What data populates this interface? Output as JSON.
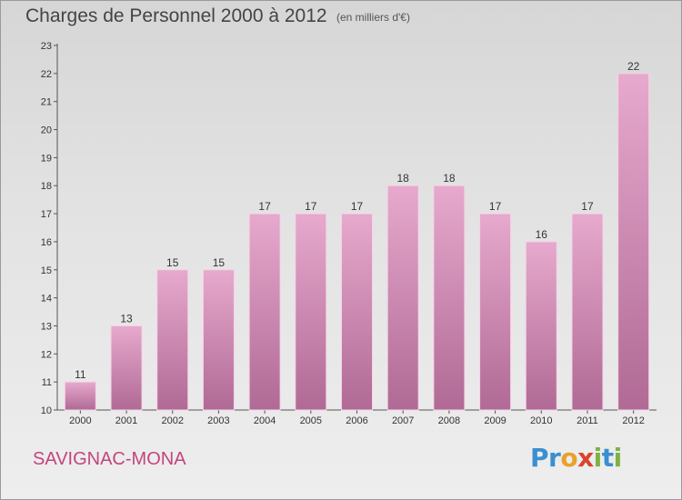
{
  "chart_data": {
    "type": "bar",
    "title": "Charges de Personnel 2000 à 2012",
    "subtitle": "(en milliers d'€)",
    "categories": [
      "2000",
      "2001",
      "2002",
      "2003",
      "2004",
      "2005",
      "2006",
      "2007",
      "2008",
      "2009",
      "2010",
      "2011",
      "2012"
    ],
    "values": [
      11,
      13,
      15,
      15,
      17,
      17,
      17,
      18,
      18,
      17,
      16,
      17,
      22
    ],
    "ylim": [
      10,
      23
    ],
    "yticks": [
      10,
      11,
      12,
      13,
      14,
      15,
      16,
      17,
      18,
      19,
      20,
      21,
      22,
      23
    ],
    "grid": false,
    "bar_color": "#d98fb9",
    "bar_color_dark": "#b56e98"
  },
  "footer": {
    "place": "SAVIGNAC-MONA",
    "logo_letters": [
      {
        "char": "P",
        "color": "#3a8fd0"
      },
      {
        "char": "r",
        "color": "#3a8fd0"
      },
      {
        "char": "o",
        "color": "#e8a12a"
      },
      {
        "char": "x",
        "color": "#d9432f"
      },
      {
        "char": "i",
        "color": "#7cb342"
      },
      {
        "char": "t",
        "color": "#3a8fd0"
      },
      {
        "char": "i",
        "color": "#7cb342"
      }
    ]
  }
}
